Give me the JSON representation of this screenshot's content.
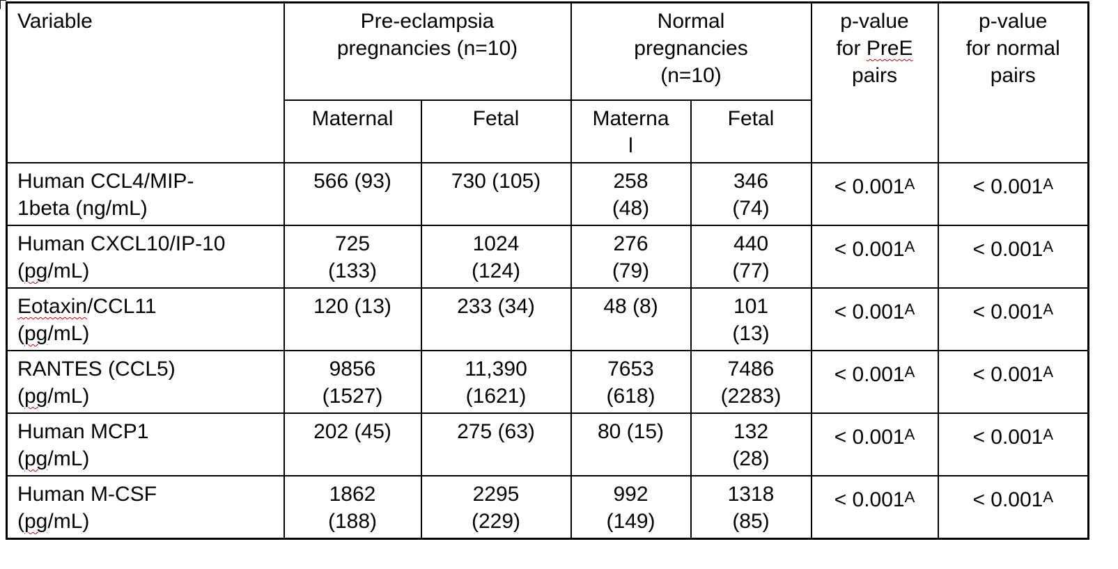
{
  "headers": {
    "variable": "Variable",
    "pre_group": [
      "Pre-eclampsia",
      "pregnancies (n=10)"
    ],
    "normal_group": [
      "Normal",
      "pregnancies",
      "(n=10)"
    ],
    "pval_pre": [
      "p-value",
      "for PreE",
      "pairs"
    ],
    "pval_pre_flagged_word": "PreE",
    "pval_normal": [
      "p-value",
      "for normal",
      "pairs"
    ],
    "sub_pre_maternal": "Maternal",
    "sub_pre_fetal": "Fetal",
    "sub_norm_maternal": [
      "Materna",
      "l"
    ],
    "sub_norm_fetal": "Fetal"
  },
  "rows": [
    {
      "variable": [
        "Human CCL4/MIP-",
        "1beta (ng/mL)"
      ],
      "pre_maternal": [
        "566 (93)"
      ],
      "pre_fetal": [
        "730 (105)"
      ],
      "norm_maternal": [
        "258",
        "(48)"
      ],
      "norm_fetal": [
        "346",
        "(74)"
      ],
      "p_pre": "< 0.001",
      "p_pre_sup": "A",
      "p_norm": "< 0.001",
      "p_norm_sup": "A"
    },
    {
      "variable": [
        "Human CXCL10/IP-10",
        "(pg/mL)"
      ],
      "pre_maternal": [
        "725",
        "(133)"
      ],
      "pre_fetal": [
        "1024",
        "(124)"
      ],
      "norm_maternal": [
        "276",
        "(79)"
      ],
      "norm_fetal": [
        "440",
        "(77)"
      ],
      "p_pre": "< 0.001",
      "p_pre_sup": "A",
      "p_norm": "< 0.001",
      "p_norm_sup": "A"
    },
    {
      "variable": [
        "Eotaxin/CCL11",
        "(pg/mL)"
      ],
      "pre_maternal": [
        "120 (13)"
      ],
      "pre_fetal": [
        "233 (34)"
      ],
      "norm_maternal": [
        "48 (8)"
      ],
      "norm_fetal": [
        "101",
        "(13)"
      ],
      "p_pre": "< 0.001",
      "p_pre_sup": "A",
      "p_norm": "< 0.001",
      "p_norm_sup": "A"
    },
    {
      "variable": [
        "RANTES (CCL5)",
        "(pg/mL)"
      ],
      "pre_maternal": [
        "9856",
        "(1527)"
      ],
      "pre_fetal": [
        "11,390",
        "(1621)"
      ],
      "norm_maternal": [
        "7653",
        "(618)"
      ],
      "norm_fetal": [
        "7486",
        "(2283)"
      ],
      "p_pre": "< 0.001",
      "p_pre_sup": "A",
      "p_norm": "< 0.001",
      "p_norm_sup": "A"
    },
    {
      "variable": [
        "Human MCP1",
        "(pg/mL)"
      ],
      "pre_maternal": [
        "202 (45)"
      ],
      "pre_fetal": [
        "275 (63)"
      ],
      "norm_maternal": [
        "80 (15)"
      ],
      "norm_fetal": [
        "132",
        "(28)"
      ],
      "p_pre": "< 0.001",
      "p_pre_sup": "A",
      "p_norm": "< 0.001",
      "p_norm_sup": "A"
    },
    {
      "variable": [
        "Human M-CSF",
        "(pg/mL)"
      ],
      "pre_maternal": [
        "1862",
        "(188)"
      ],
      "pre_fetal": [
        "2295",
        "(229)"
      ],
      "norm_maternal": [
        "992",
        "(149)"
      ],
      "norm_fetal": [
        "1318",
        "(85)"
      ],
      "p_pre": "< 0.001",
      "p_pre_sup": "A",
      "p_norm": "< 0.001",
      "p_norm_sup": "A"
    }
  ],
  "spellcheck_flagged_words": [
    "PreE",
    "Eotaxin",
    "pg"
  ],
  "colors": {
    "text": "#000000",
    "border": "#000000",
    "spellcheck_underline": "#d40000"
  }
}
